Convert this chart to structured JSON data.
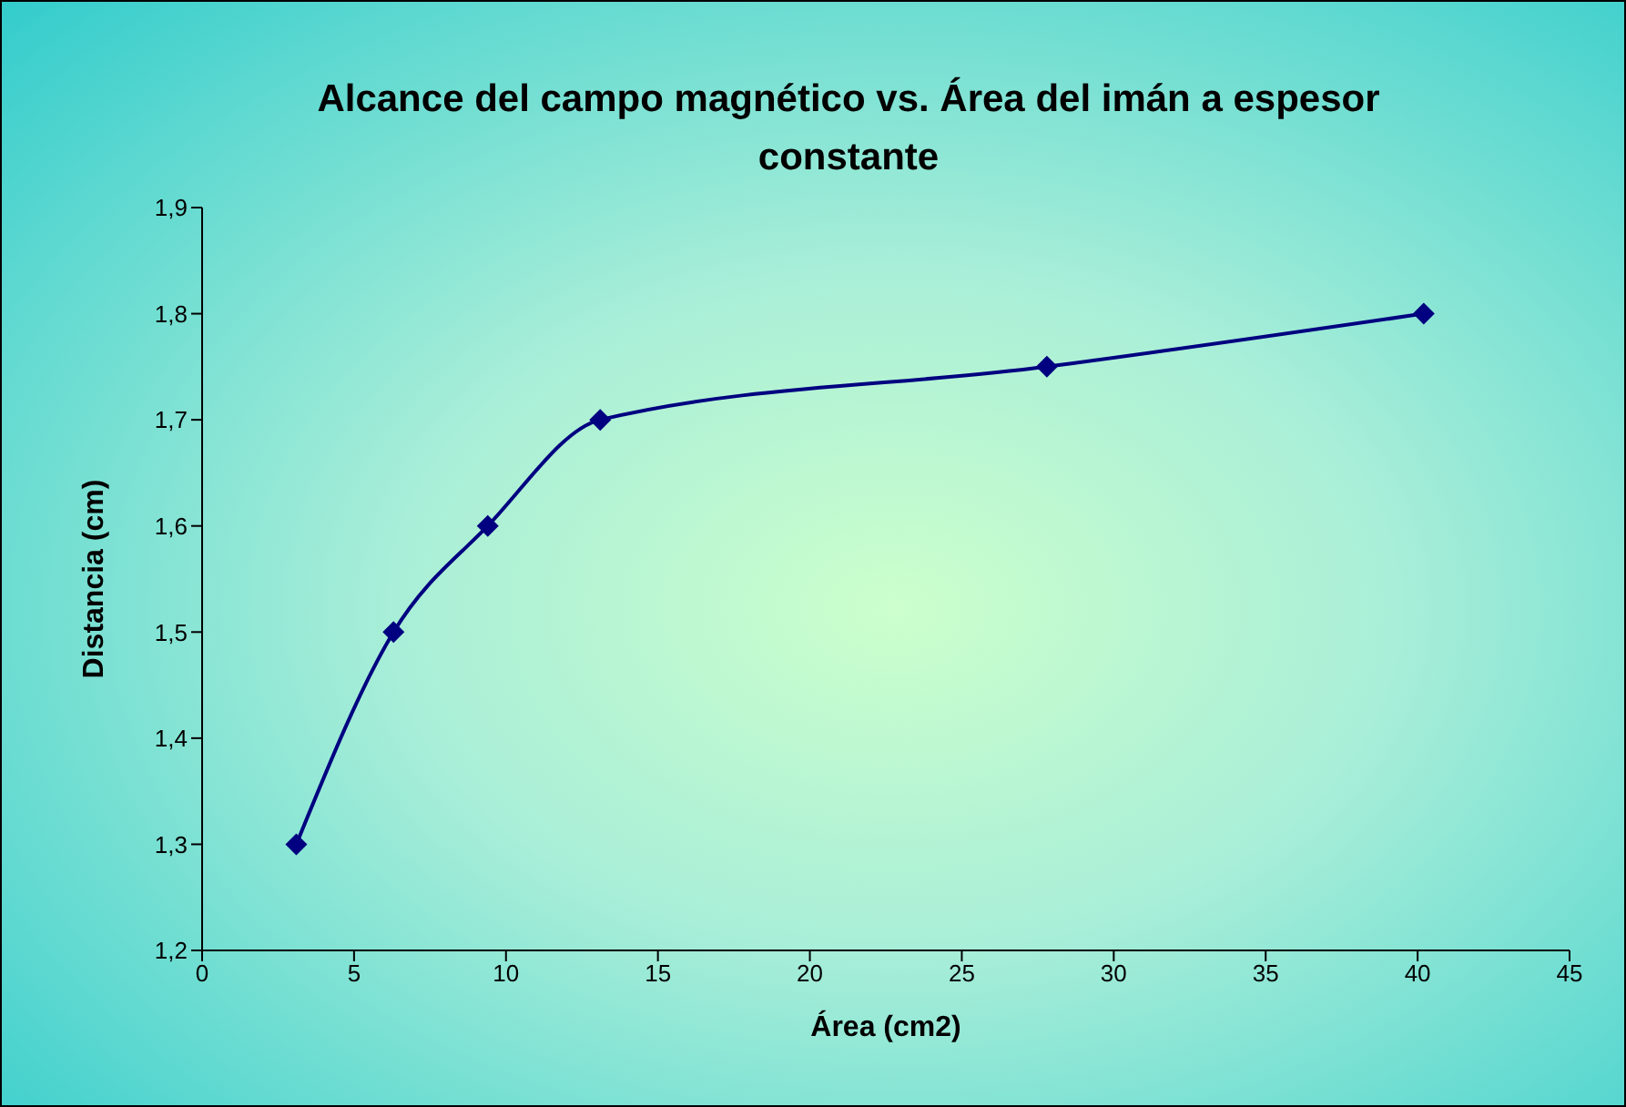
{
  "chart_data": {
    "type": "line",
    "title": "Alcance del campo magnético vs. Área del imán a espesor constante",
    "xlabel": "Área (cm2)",
    "ylabel": "Distancia (cm)",
    "x": [
      3.1,
      6.3,
      9.4,
      13.1,
      27.8,
      40.2
    ],
    "series": [
      {
        "color": "#000080",
        "values": [
          1.3,
          1.5,
          1.6,
          1.7,
          1.75,
          1.8
        ]
      }
    ],
    "xlim": [
      0,
      45
    ],
    "xticks": [
      0,
      5,
      10,
      15,
      20,
      25,
      30,
      35,
      40,
      45
    ],
    "ylim": [
      1.2,
      1.9
    ],
    "yticks": [
      {
        "value": 1.2,
        "label": "1,2"
      },
      {
        "value": 1.3,
        "label": "1,3"
      },
      {
        "value": 1.4,
        "label": "1,4"
      },
      {
        "value": 1.5,
        "label": "1,5"
      },
      {
        "value": 1.6,
        "label": "1,6"
      },
      {
        "value": 1.7,
        "label": "1,7"
      },
      {
        "value": 1.8,
        "label": "1,8"
      },
      {
        "value": 1.9,
        "label": "1,9"
      }
    ],
    "grid": false,
    "marker": "diamond",
    "line_style": "solid"
  }
}
